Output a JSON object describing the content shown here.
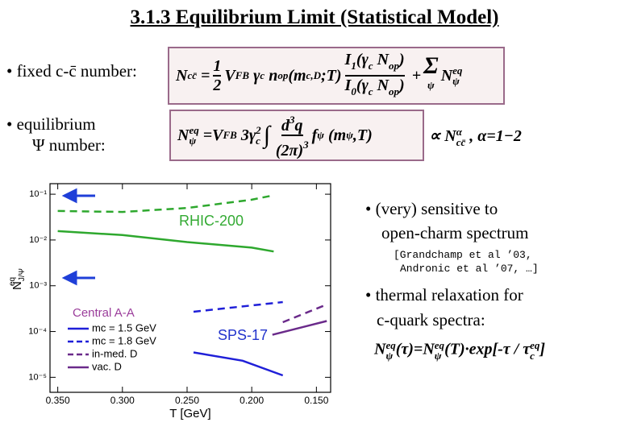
{
  "title": "3.1.3  Equilibrium Limit (Statistical Model)",
  "bullets": [
    "• fixed c-c̄ number:",
    "• equilibrium",
    "Ψ number:"
  ],
  "right_text": [
    "• (very) sensitive to",
    "open-charm spectrum",
    "[Grandchamp et al ’03,",
    "Andronic et al ’07, …]",
    "• thermal relaxation for",
    "c-quark spectra:"
  ],
  "formulas": [
    [
      "N",
      "cc̄",
      "=",
      "1",
      "2",
      "V",
      "FB",
      "γ",
      "c",
      "n",
      "op",
      "(m",
      "c,D",
      ";T)",
      "I",
      "1",
      "(γ",
      "c",
      "N",
      "op",
      ")",
      "I",
      "0",
      "(γ",
      "c",
      "N",
      "op",
      ")",
      "+",
      "Σ",
      "ψ",
      "N",
      "ψ",
      "eq"
    ],
    [
      "N",
      "ψ",
      "eq",
      "=V",
      "FB",
      "3γ",
      "c",
      "2",
      "∫",
      "d",
      "3",
      "q",
      "(2π)",
      "3",
      "f",
      "ψ",
      "(m",
      "ψ",
      ",T)",
      "∝",
      "N",
      "cc̄",
      "α",
      ", α=1−2"
    ],
    [
      "N",
      "ψ",
      "eq",
      "(τ)=N",
      "ψ",
      "eq",
      "(T)·exp[-τ / τ",
      "c",
      "eq",
      "]"
    ]
  ],
  "chart_data": {
    "type": "line",
    "xlabel": "T [GeV]",
    "ylabel": "N",
    "ylabel_sup": "eq",
    "ylabel_sub": "J/Ψ",
    "log_y": true,
    "xlim": [
      0.356,
      0.139
    ],
    "ylim": [
      4.7e-06,
      0.17
    ],
    "xticks": [
      {
        "value": 0.35,
        "label": "0.350"
      },
      {
        "value": 0.3,
        "label": "0.300"
      },
      {
        "value": 0.25,
        "label": "0.250"
      },
      {
        "value": 0.2,
        "label": "0.200"
      },
      {
        "value": 0.15,
        "label": "0.150"
      }
    ],
    "yticks": [
      {
        "value": 0.1,
        "label": "10⁻¹"
      },
      {
        "value": 0.01,
        "label": "10⁻²"
      },
      {
        "value": 0.001,
        "label": "10⁻³"
      },
      {
        "value": 0.0001,
        "label": "10⁻⁴"
      },
      {
        "value": 1e-05,
        "label": "10⁻⁵"
      }
    ],
    "legend_title": "Central A-A",
    "series": [
      {
        "color": "#2ea82e",
        "dash": true,
        "x": [
          0.35,
          0.3,
          0.25,
          0.2,
          0.183
        ],
        "values": [
          0.043,
          0.041,
          0.05,
          0.076,
          0.095
        ]
      },
      {
        "color": "#2ea82e",
        "dash": false,
        "x": [
          0.35,
          0.3,
          0.25,
          0.2,
          0.183
        ],
        "values": [
          0.0156,
          0.0128,
          0.009,
          0.0068,
          0.0056
        ]
      },
      {
        "name": "mc = 1.5 GeV",
        "color": "#1f1fd8",
        "dash": false,
        "x": [
          0.245,
          0.207,
          0.176
        ],
        "values": [
          3.5e-05,
          2.3e-05,
          1.1e-05
        ]
      },
      {
        "name": "mc = 1.8 GeV",
        "color": "#1f1fd8",
        "dash": true,
        "x": [
          0.245,
          0.176
        ],
        "values": [
          0.00027,
          0.00044
        ]
      },
      {
        "name": "in-med. D",
        "color": "#6a2a8a",
        "dash": true,
        "x": [
          0.176,
          0.142
        ],
        "values": [
          0.00016,
          0.00039
        ]
      },
      {
        "name": "vac. D",
        "color": "#6a2a8a",
        "dash": false,
        "x": [
          0.184,
          0.142
        ],
        "values": [
          8.5e-05,
          0.00017
        ]
      }
    ],
    "annotations": [
      {
        "text": "RHIC-200",
        "color": "#33aa33"
      },
      {
        "text": "SPS-17",
        "color": "#2233cc"
      }
    ]
  }
}
